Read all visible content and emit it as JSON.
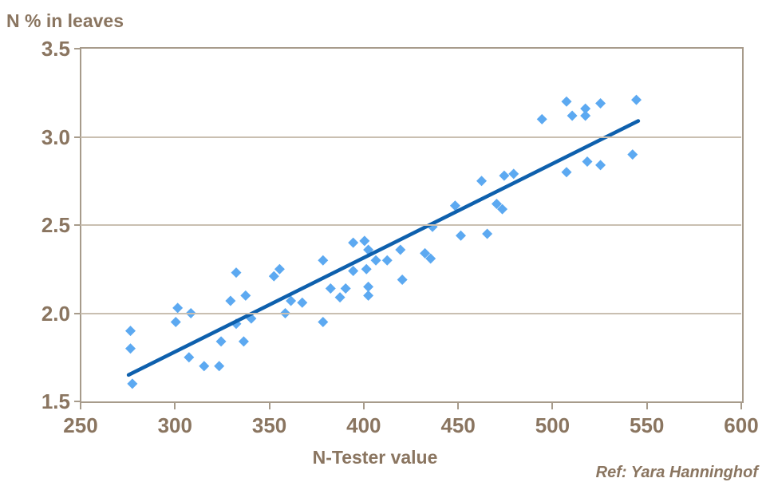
{
  "chart_data": {
    "type": "scatter",
    "title": "N % in leaves",
    "xlabel": "N-Tester value",
    "ylabel": "N % in leaves",
    "annotation": "Ref: Yara Hanninghof",
    "xlim": [
      250,
      600
    ],
    "ylim": [
      1.5,
      3.5
    ],
    "x_ticks": [
      "250",
      "300",
      "350",
      "400",
      "450",
      "500",
      "550",
      "600"
    ],
    "y_ticks": [
      "3.5",
      "3.0",
      "2.5",
      "2.0",
      "1.5"
    ],
    "gridlines_y": [
      3.0,
      2.5,
      2.0
    ],
    "legend_position": "none",
    "series": [
      {
        "name": "N % observations",
        "kind": "scatter",
        "marker": "diamond",
        "marker_size": 13,
        "color": "#5CA9F1",
        "points": [
          [
            276,
            1.9
          ],
          [
            276,
            1.8
          ],
          [
            277,
            1.6
          ],
          [
            300,
            1.95
          ],
          [
            301,
            2.03
          ],
          [
            307,
            1.75
          ],
          [
            308,
            2.0
          ],
          [
            315,
            1.7
          ],
          [
            323,
            1.7
          ],
          [
            324,
            1.84
          ],
          [
            329,
            2.07
          ],
          [
            332,
            1.94
          ],
          [
            332,
            2.23
          ],
          [
            336,
            1.84
          ],
          [
            337,
            2.1
          ],
          [
            340,
            1.97
          ],
          [
            352,
            2.21
          ],
          [
            355,
            2.25
          ],
          [
            358,
            2.0
          ],
          [
            361,
            2.07
          ],
          [
            367,
            2.06
          ],
          [
            378,
            1.95
          ],
          [
            378,
            2.3
          ],
          [
            382,
            2.14
          ],
          [
            387,
            2.09
          ],
          [
            390,
            2.14
          ],
          [
            394,
            2.24
          ],
          [
            394,
            2.4
          ],
          [
            400,
            2.41
          ],
          [
            401,
            2.25
          ],
          [
            402,
            2.1
          ],
          [
            402,
            2.15
          ],
          [
            402,
            2.36
          ],
          [
            406,
            2.3
          ],
          [
            412,
            2.3
          ],
          [
            419,
            2.36
          ],
          [
            420,
            2.19
          ],
          [
            432,
            2.34
          ],
          [
            435,
            2.31
          ],
          [
            436,
            2.49
          ],
          [
            448,
            2.61
          ],
          [
            451,
            2.44
          ],
          [
            462,
            2.75
          ],
          [
            465,
            2.45
          ],
          [
            470,
            2.62
          ],
          [
            473,
            2.59
          ],
          [
            474,
            2.78
          ],
          [
            479,
            2.79
          ],
          [
            494,
            3.1
          ],
          [
            507,
            2.8
          ],
          [
            507,
            3.2
          ],
          [
            510,
            3.12
          ],
          [
            517,
            3.12
          ],
          [
            517,
            3.16
          ],
          [
            518,
            2.86
          ],
          [
            525,
            2.84
          ],
          [
            525,
            3.19
          ],
          [
            542,
            2.9
          ],
          [
            544,
            3.21
          ]
        ]
      },
      {
        "name": "trend line",
        "kind": "line",
        "color": "#0E60AD",
        "line_width": 4.6,
        "points": [
          [
            275,
            1.65
          ],
          [
            545,
            3.09
          ]
        ]
      }
    ]
  },
  "style": {
    "text_color": "#8A7560",
    "axis_color": "#A79B8B",
    "grid_color": "#C9BFB1",
    "background": "#FFFFFF"
  }
}
